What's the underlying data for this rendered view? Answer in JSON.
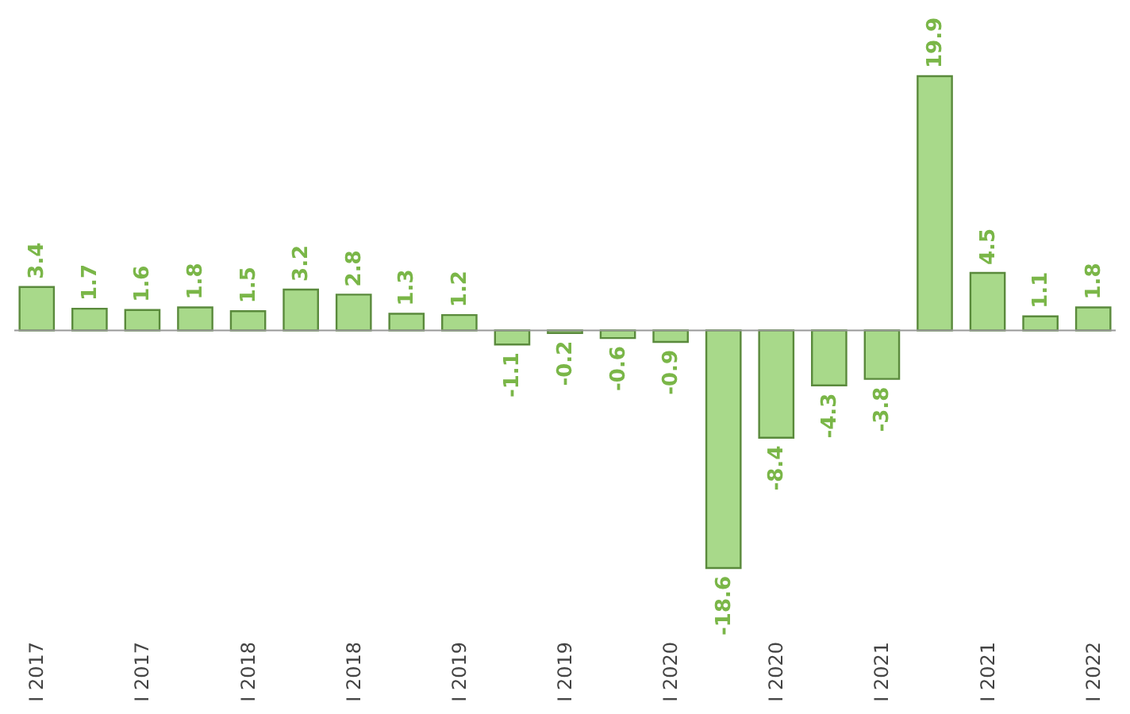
{
  "chart_data": {
    "type": "bar",
    "categories": [
      "I 2017",
      null,
      "I 2017",
      null,
      "I 2018",
      null,
      "I 2018",
      null,
      "I 2019",
      null,
      "I 2019",
      null,
      "I 2020",
      null,
      "I 2020",
      null,
      "I 2021",
      null,
      "I 2021",
      null,
      "I 2022"
    ],
    "values": [
      3.4,
      1.7,
      1.6,
      1.8,
      1.5,
      3.2,
      2.8,
      1.3,
      1.2,
      -1.1,
      -0.2,
      -0.6,
      -0.9,
      -18.6,
      -8.4,
      -4.3,
      -3.8,
      19.9,
      4.5,
      1.1,
      1.8
    ],
    "color": "#a8d98a",
    "data_labels": true
  }
}
